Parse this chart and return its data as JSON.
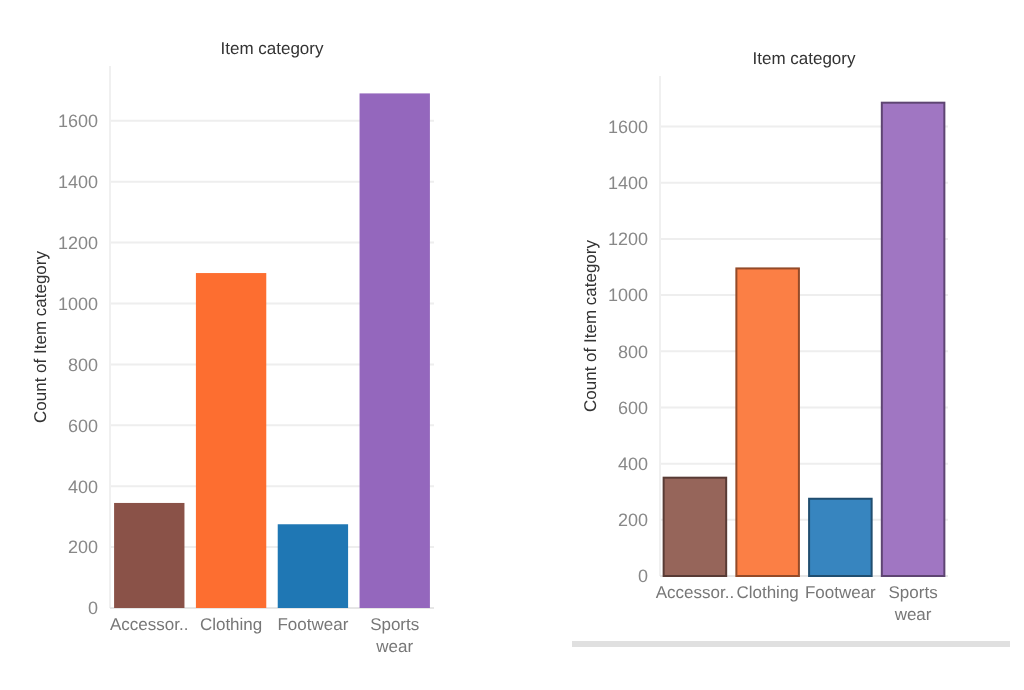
{
  "chart_data": [
    {
      "type": "bar",
      "title": "Item category",
      "ylabel": "Count of Item category",
      "categories": [
        "Accessor..",
        "Clothing",
        "Footwear",
        "Sports wear"
      ],
      "values": [
        345,
        1100,
        275,
        1690
      ],
      "colors": [
        "#8a5248",
        "#fd6e30",
        "#1f77b4",
        "#9467bd"
      ],
      "ylim": [
        0,
        1780
      ],
      "yticks": [
        0,
        200,
        400,
        600,
        800,
        1000,
        1200,
        1400,
        1600
      ],
      "grid": "y"
    },
    {
      "type": "bar",
      "title": "Item category",
      "ylabel": "Count of Item category",
      "categories": [
        "Accessor..",
        "Clothing",
        "Footwear",
        "Sports wear"
      ],
      "values": [
        350,
        1095,
        275,
        1685
      ],
      "colors": [
        "#96655a",
        "#fb7f45",
        "#3785bf",
        "#a076c2"
      ],
      "ylim": [
        0,
        1780
      ],
      "yticks": [
        0,
        200,
        400,
        600,
        800,
        1000,
        1200,
        1400,
        1600
      ],
      "grid": "y"
    }
  ]
}
